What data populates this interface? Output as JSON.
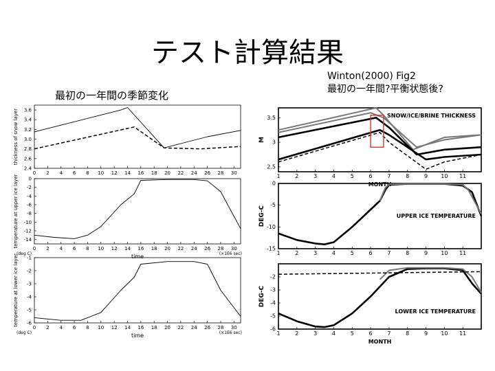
{
  "slide": {
    "title": "テスト計算結果",
    "left_caption": "最初の一年間の季節変化",
    "right_caption_line1": "Winton(2000) Fig2",
    "right_caption_line2": "最初の一年間?平衡状態後?"
  },
  "colors": {
    "frame": "#000000",
    "highlight_box": "#e03030",
    "gray_series": "#777777"
  },
  "chart_data": [
    {
      "type": "line",
      "ylabel": "thickness of snow layer",
      "xlim": [
        0,
        31
      ],
      "ylim": [
        2.4,
        3.7
      ],
      "xticks": [
        0,
        2,
        4,
        6,
        8,
        10,
        12,
        14,
        16,
        18,
        20,
        22,
        24,
        26,
        28,
        30
      ],
      "yticks": [
        2.4,
        2.6,
        2.8,
        3.0,
        3.2,
        3.4,
        3.6
      ],
      "series": [
        {
          "style": "solid",
          "x": [
            0,
            13,
            14,
            19.5,
            24,
            26,
            31
          ],
          "y": [
            3.15,
            3.6,
            3.65,
            2.82,
            2.98,
            3.05,
            3.18
          ]
        },
        {
          "style": "dashed",
          "x": [
            0,
            15,
            19.5,
            25,
            31
          ],
          "y": [
            2.8,
            3.25,
            2.82,
            2.8,
            2.85
          ]
        }
      ]
    },
    {
      "type": "line",
      "ylabel": "temperature at upper ice layer",
      "xlabel": "time",
      "x_unit": "(×1E6 sec)",
      "y_unit": "(deg C)",
      "xlim": [
        0,
        31
      ],
      "ylim": [
        -15,
        0
      ],
      "xticks": [
        0,
        2,
        4,
        6,
        8,
        10,
        12,
        14,
        16,
        18,
        20,
        22,
        24,
        26,
        28,
        30
      ],
      "yticks": [
        0,
        -2,
        -4,
        -6,
        -8,
        -10,
        -12,
        -14
      ],
      "series": [
        {
          "style": "solid",
          "x": [
            0,
            3,
            6,
            8,
            10,
            13,
            15,
            16,
            20,
            24,
            26,
            28,
            31
          ],
          "y": [
            -13,
            -13.5,
            -13.8,
            -13,
            -11,
            -6,
            -3.5,
            -0.4,
            -0.2,
            -0.2,
            -0.5,
            -3,
            -11.5
          ]
        }
      ]
    },
    {
      "type": "line",
      "ylabel": "temperature at lower ice layer",
      "xlabel": "time",
      "x_unit": "(×1E6 sec)",
      "y_unit": "(deg C)",
      "xlim": [
        0,
        31
      ],
      "ylim": [
        -6,
        -1
      ],
      "xticks": [
        0,
        2,
        4,
        6,
        8,
        10,
        12,
        14,
        16,
        18,
        20,
        22,
        24,
        26,
        28,
        30
      ],
      "yticks": [
        -1,
        -2,
        -3,
        -4,
        -5,
        -6
      ],
      "series": [
        {
          "style": "solid",
          "x": [
            0,
            2,
            4,
            7,
            10,
            13,
            15,
            16,
            20,
            24,
            26,
            28,
            31
          ],
          "y": [
            -5.6,
            -5.7,
            -5.8,
            -5.8,
            -5.2,
            -3.5,
            -2.5,
            -1.5,
            -1.3,
            -1.3,
            -1.5,
            -3.5,
            -5.5
          ]
        }
      ]
    },
    {
      "type": "line",
      "annotation": "SNOW/ICE/BRINE THICKNESS",
      "ylabel": "M",
      "xlabel": "MONTH",
      "xlim": [
        1,
        12
      ],
      "ylim": [
        2.4,
        3.7
      ],
      "xticks": [
        1,
        2,
        3,
        4,
        5,
        6,
        7,
        8,
        9,
        10,
        11
      ],
      "yticks": [
        2.5,
        3,
        3.5
      ],
      "series": [
        {
          "style": "gray",
          "x": [
            1,
            6,
            6.7,
            8.5,
            10,
            12
          ],
          "y": [
            3.2,
            3.6,
            3.5,
            2.9,
            3.05,
            3.15
          ]
        },
        {
          "style": "gray",
          "x": [
            1,
            6.3,
            6.7,
            8.3,
            10,
            12
          ],
          "y": [
            3.25,
            3.7,
            3.55,
            2.85,
            3.1,
            3.15
          ]
        },
        {
          "style": "thick",
          "x": [
            1,
            6.3,
            7,
            8.5,
            10,
            12
          ],
          "y": [
            3.1,
            3.5,
            3.3,
            2.75,
            2.85,
            2.9
          ]
        },
        {
          "style": "thick",
          "x": [
            1,
            6.5,
            7,
            9,
            10,
            12
          ],
          "y": [
            2.65,
            3.25,
            3.15,
            2.65,
            2.7,
            2.75
          ]
        },
        {
          "style": "dashed",
          "x": [
            1,
            6.5,
            7,
            9,
            10,
            12
          ],
          "y": [
            2.6,
            3.2,
            3.0,
            2.45,
            2.6,
            2.75
          ]
        }
      ]
    },
    {
      "type": "line",
      "annotation": "UPPER ICE TEMPERATURE",
      "ylabel": "DEG-C",
      "xlim": [
        1,
        12
      ],
      "ylim": [
        -15,
        0
      ],
      "xticks": [
        1,
        2,
        3,
        4,
        5,
        6,
        7,
        8,
        9,
        10,
        11
      ],
      "yticks": [
        0,
        -5,
        -10,
        -15
      ],
      "series": [
        {
          "style": "thick",
          "x": [
            1,
            2,
            3,
            3.5,
            4,
            5,
            6,
            6.5,
            6.8,
            7,
            8,
            9,
            10,
            11,
            11.5,
            12
          ],
          "y": [
            -11.5,
            -13,
            -13.8,
            -14,
            -13.5,
            -10,
            -6,
            -4,
            -1.5,
            -0.3,
            -0.1,
            -0.1,
            -0.1,
            -0.5,
            -2,
            -7.5
          ]
        },
        {
          "style": "gray",
          "x": [
            6.5,
            6.8,
            7,
            8,
            9,
            10,
            11,
            11.3,
            12
          ],
          "y": [
            -4,
            -1,
            -0.2,
            -0.1,
            -0.1,
            -0.1,
            -0.3,
            -1.5,
            -7
          ]
        }
      ]
    },
    {
      "type": "line",
      "annotation": "LOWER ICE TEMPERATURE",
      "ylabel": "DEG-C",
      "xlabel": "MONTH",
      "xlim": [
        1,
        12
      ],
      "ylim": [
        -6,
        -1
      ],
      "xticks": [
        1,
        2,
        3,
        4,
        5,
        6,
        7,
        8,
        9,
        10,
        11
      ],
      "yticks": [
        -2,
        -3,
        -4,
        -5,
        -6
      ],
      "series": [
        {
          "style": "thick",
          "x": [
            1,
            2,
            3,
            3.5,
            4,
            5,
            6,
            7,
            8,
            9,
            10,
            11,
            11.5,
            12
          ],
          "y": [
            -4.8,
            -5.4,
            -5.8,
            -5.85,
            -5.7,
            -4.8,
            -3.5,
            -2,
            -1.4,
            -1.35,
            -1.35,
            -1.5,
            -2.5,
            -3.3
          ]
        },
        {
          "style": "gray",
          "x": [
            6.5,
            7,
            8,
            9,
            10,
            11,
            11.5,
            12
          ],
          "y": [
            -2.2,
            -1.5,
            -1.3,
            -1.3,
            -1.3,
            -1.4,
            -2,
            -3.2
          ]
        },
        {
          "style": "dashed",
          "x": [
            1,
            12
          ],
          "y": [
            -1.8,
            -1.6
          ]
        }
      ]
    }
  ]
}
